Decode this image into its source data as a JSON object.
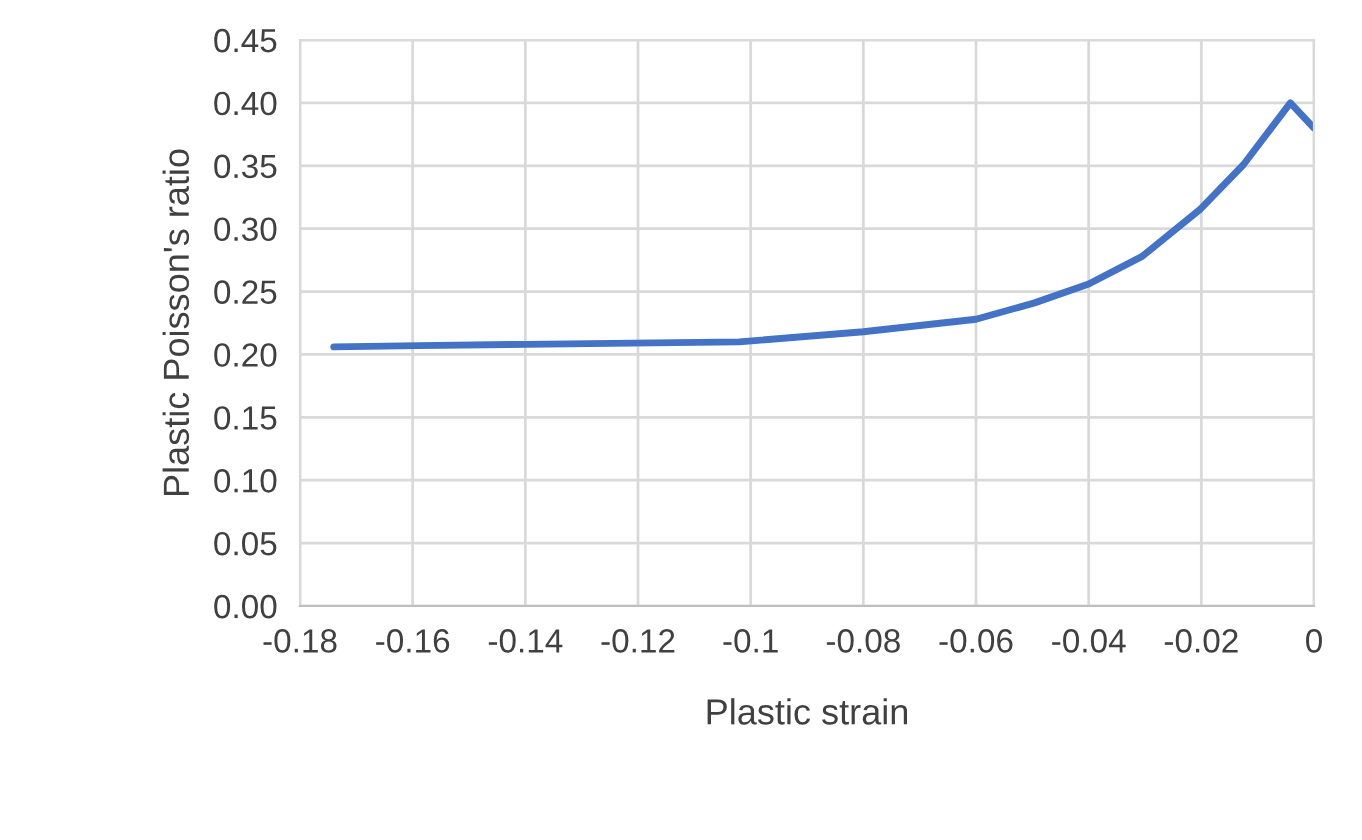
{
  "chart_data": {
    "type": "line",
    "xlabel": "Plastic strain",
    "ylabel": "Plastic Poisson's ratio",
    "series": [
      {
        "color": "#4472c4",
        "x": [
          -0.174,
          -0.159,
          -0.14,
          -0.102,
          -0.08,
          -0.07,
          -0.06,
          -0.0496,
          -0.04,
          -0.0305,
          -0.0203,
          -0.0125,
          -0.0042,
          0
        ],
        "values": [
          0.206,
          0.207,
          0.208,
          0.21,
          0.218,
          0.223,
          0.228,
          0.241,
          0.256,
          0.278,
          0.315,
          0.351,
          0.4,
          0.38
        ]
      }
    ],
    "xlim": [
      -0.18,
      0
    ],
    "xticks": [
      -0.18,
      -0.16,
      -0.14,
      -0.12,
      -0.1,
      -0.08,
      -0.06,
      -0.04,
      -0.02,
      0
    ],
    "ylim": [
      0,
      0.45
    ],
    "yticks": [
      {
        "value": 0,
        "label": "0.00"
      },
      {
        "value": 0.05,
        "label": "0.05"
      },
      {
        "value": 0.1,
        "label": "0.10"
      },
      {
        "value": 0.15,
        "label": "0.15"
      },
      {
        "value": 0.2,
        "label": "0.20"
      },
      {
        "value": 0.25,
        "label": "0.25"
      },
      {
        "value": 0.3,
        "label": "0.30"
      },
      {
        "value": 0.35,
        "label": "0.35"
      },
      {
        "value": 0.4,
        "label": "0.40"
      },
      {
        "value": 0.45,
        "label": "0.45"
      }
    ],
    "grid": true
  }
}
